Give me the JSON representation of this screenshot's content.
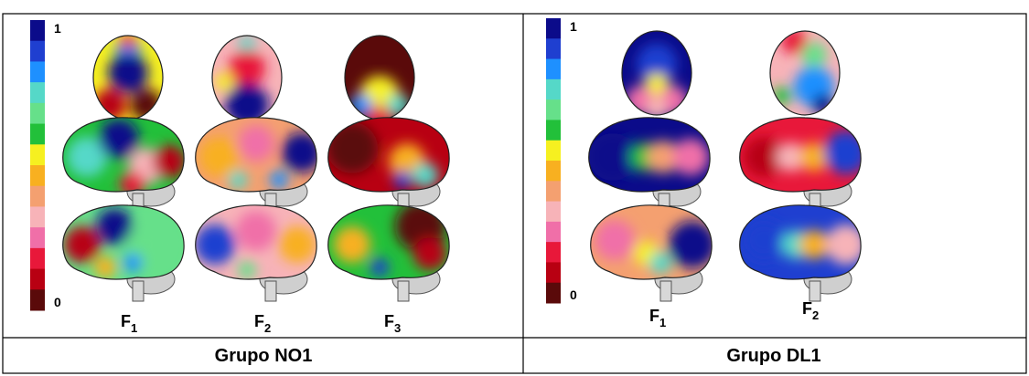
{
  "figure": {
    "panels": [
      {
        "scale": {
          "max": "1",
          "min": "0"
        },
        "maps": [
          {
            "letter": "F",
            "sub": "1"
          },
          {
            "letter": "F",
            "sub": "2"
          },
          {
            "letter": "F",
            "sub": "3"
          }
        ],
        "caption": "Grupo NO1"
      },
      {
        "scale": {
          "max": "1",
          "min": "0"
        },
        "maps": [
          {
            "letter": "F",
            "sub": "1"
          },
          {
            "letter": "F",
            "sub": "2"
          }
        ],
        "caption": "Grupo DL1"
      }
    ]
  }
}
